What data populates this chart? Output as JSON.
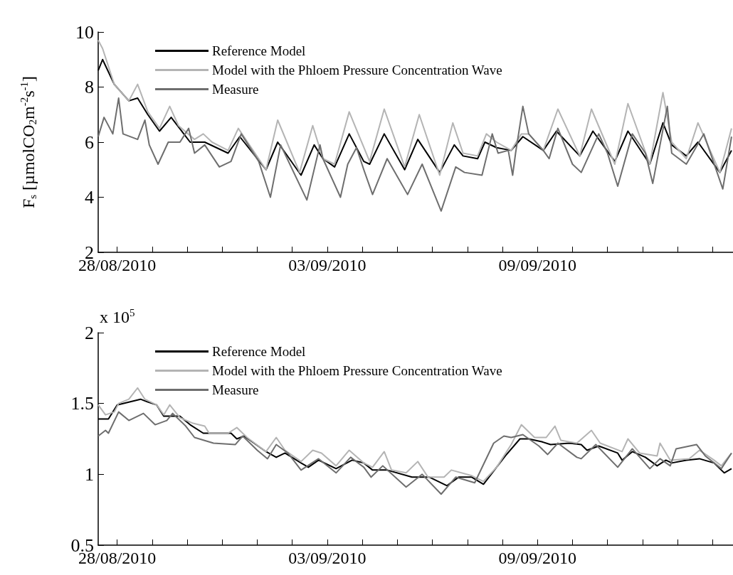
{
  "chart_data": [
    {
      "type": "line",
      "ylabel": "F$_{s}$ [µmolCO$_{2}$m$^{-2}$s$^{-1}$]",
      "legend": "top left",
      "grid": false,
      "marker": "none",
      "xlim": [
        "2010-08-27T11:00",
        "2010-09-14T14:00"
      ],
      "xticks": [
        {
          "value": "2010-08-28",
          "label": "28/08/2010"
        },
        {
          "value": "2010-08-29",
          "label": null
        },
        {
          "value": "2010-08-30",
          "label": null
        },
        {
          "value": "2010-08-31",
          "label": null
        },
        {
          "value": "2010-09-01",
          "label": null
        },
        {
          "value": "2010-09-02",
          "label": null
        },
        {
          "value": "2010-09-03",
          "label": "03/09/2010"
        },
        {
          "value": "2010-09-04",
          "label": null
        },
        {
          "value": "2010-09-05",
          "label": null
        },
        {
          "value": "2010-09-06",
          "label": null
        },
        {
          "value": "2010-09-07",
          "label": null
        },
        {
          "value": "2010-09-08",
          "label": null
        },
        {
          "value": "2010-09-09",
          "label": "09/09/2010"
        },
        {
          "value": "2010-09-10",
          "label": null
        },
        {
          "value": "2010-09-11",
          "label": null
        },
        {
          "value": "2010-09-12",
          "label": null
        },
        {
          "value": "2010-09-13",
          "label": null
        },
        {
          "value": "2010-09-14",
          "label": null
        }
      ],
      "ylim": [
        2,
        10
      ],
      "yticks": [
        2,
        4,
        6,
        8,
        10
      ],
      "series": [
        {
          "name": "Reference Model",
          "color": "#000000",
          "x": [
            "2010-08-27T11:00",
            "2010-08-27T14:00",
            "2010-08-27T22:00",
            "2010-08-28T08:00",
            "2010-08-28T14:00",
            "2010-08-28T21:00",
            "2010-08-29T05:00",
            "2010-08-29T13:00",
            "2010-08-30T02:00",
            "2010-08-30T12:00",
            "2010-08-31T04:00",
            "2010-08-31T12:00",
            "2010-09-01T06:00",
            "2010-09-01T14:00",
            "2010-09-02T06:00",
            "2010-09-02T15:00",
            "2010-09-02T21:00",
            "2010-09-03T05:00",
            "2010-09-03T15:00",
            "2010-09-04T01:00",
            "2010-09-04T05:00",
            "2010-09-04T15:00",
            "2010-09-05T05:00",
            "2010-09-05T14:00",
            "2010-09-06T05:00",
            "2010-09-06T15:00",
            "2010-09-06T21:00",
            "2010-09-07T07:00",
            "2010-09-07T12:00",
            "2010-09-07T20:00",
            "2010-09-08T06:00",
            "2010-09-08T14:00",
            "2010-09-09T04:00",
            "2010-09-09T13:00",
            "2010-09-10T05:00",
            "2010-09-10T14:00",
            "2010-09-11T05:00",
            "2010-09-11T14:00",
            "2010-09-12T05:00",
            "2010-09-12T14:00",
            "2010-09-12T20:00",
            "2010-09-13T06:00",
            "2010-09-13T14:00",
            "2010-09-14T05:00",
            "2010-09-14T13:00"
          ],
          "values": [
            8.6,
            9.0,
            8.1,
            7.5,
            7.6,
            7.0,
            6.4,
            6.9,
            6.0,
            6.0,
            5.6,
            6.2,
            5.0,
            6.0,
            4.8,
            5.9,
            5.4,
            5.1,
            6.3,
            5.3,
            5.2,
            6.3,
            5.0,
            6.1,
            4.9,
            5.9,
            5.5,
            5.4,
            6.0,
            5.8,
            5.7,
            6.2,
            5.7,
            6.4,
            5.5,
            6.4,
            5.3,
            6.4,
            5.2,
            6.7,
            5.9,
            5.5,
            6.0,
            4.9,
            5.7
          ]
        },
        {
          "name": "Model with the Phloem Pressure Concentration Wave",
          "color": "#b4b4b4",
          "x": [
            "2010-08-27T11:00",
            "2010-08-27T14:00",
            "2010-08-27T22:00",
            "2010-08-28T08:00",
            "2010-08-28T14:00",
            "2010-08-28T21:00",
            "2010-08-29T05:00",
            "2010-08-29T12:00",
            "2010-08-29T18:00",
            "2010-08-30T05:00",
            "2010-08-30T11:00",
            "2010-08-30T17:00",
            "2010-08-31T04:00",
            "2010-08-31T11:00",
            "2010-09-01T06:00",
            "2010-09-01T14:00",
            "2010-09-02T05:00",
            "2010-09-02T14:00",
            "2010-09-02T21:00",
            "2010-09-03T05:00",
            "2010-09-03T15:00",
            "2010-09-04T05:00",
            "2010-09-04T15:00",
            "2010-09-05T05:00",
            "2010-09-05T15:00",
            "2010-09-06T05:00",
            "2010-09-06T14:00",
            "2010-09-06T21:00",
            "2010-09-07T07:00",
            "2010-09-07T13:00",
            "2010-09-07T20:00",
            "2010-09-08T06:00",
            "2010-09-08T13:00",
            "2010-09-08T18:00",
            "2010-09-09T04:00",
            "2010-09-09T14:00",
            "2010-09-10T05:00",
            "2010-09-10T13:00",
            "2010-09-11T05:00",
            "2010-09-11T14:00",
            "2010-09-12T05:00",
            "2010-09-12T14:00",
            "2010-09-12T20:00",
            "2010-09-13T06:00",
            "2010-09-13T14:00",
            "2010-09-14T05:00",
            "2010-09-14T13:00"
          ],
          "values": [
            9.7,
            9.4,
            8.1,
            7.5,
            8.1,
            7.1,
            6.5,
            7.3,
            6.6,
            6.1,
            6.3,
            6.0,
            5.7,
            6.5,
            5.0,
            6.8,
            4.9,
            6.6,
            5.4,
            5.2,
            7.1,
            5.3,
            7.2,
            5.1,
            7.0,
            4.8,
            6.7,
            5.6,
            5.5,
            6.3,
            6.0,
            5.7,
            6.3,
            6.3,
            5.7,
            7.2,
            5.5,
            7.2,
            5.2,
            7.4,
            5.2,
            7.8,
            6.0,
            5.4,
            6.7,
            4.9,
            6.5
          ]
        },
        {
          "name": "Measure",
          "color": "#6e6e6e",
          "x": [
            "2010-08-27T11:00",
            "2010-08-27T15:00",
            "2010-08-27T21:00",
            "2010-08-28T01:00",
            "2010-08-28T04:00",
            "2010-08-28T14:00",
            "2010-08-28T19:00",
            "2010-08-28T22:00",
            "2010-08-29T04:00",
            "2010-08-29T11:00",
            "2010-08-29T19:00",
            "2010-08-30T01:00",
            "2010-08-30T05:00",
            "2010-08-30T12:00",
            "2010-08-30T22:00",
            "2010-08-31T06:00",
            "2010-08-31T13:00",
            "2010-09-01T01:00",
            "2010-09-01T09:00",
            "2010-09-01T16:00",
            "2010-09-02T10:00",
            "2010-09-02T19:00",
            "2010-09-02T21:00",
            "2010-09-03T09:00",
            "2010-09-03T14:00",
            "2010-09-03T20:00",
            "2010-09-04T01:00",
            "2010-09-04T07:00",
            "2010-09-04T17:00",
            "2010-09-05T07:00",
            "2010-09-05T17:00",
            "2010-09-06T06:00",
            "2010-09-06T16:00",
            "2010-09-06T22:00",
            "2010-09-07T10:00",
            "2010-09-07T17:00",
            "2010-09-07T21:00",
            "2010-09-08T04:00",
            "2010-09-08T07:00",
            "2010-09-08T09:00",
            "2010-09-08T14:00",
            "2010-09-08T18:00",
            "2010-09-09T04:00",
            "2010-09-09T08:00",
            "2010-09-09T14:00",
            "2010-09-10T00:00",
            "2010-09-10T06:00",
            "2010-09-10T18:00",
            "2010-09-11T00:00",
            "2010-09-11T07:00",
            "2010-09-11T17:00",
            "2010-09-12T02:00",
            "2010-09-12T07:00",
            "2010-09-12T17:00",
            "2010-09-12T20:00",
            "2010-09-13T06:00",
            "2010-09-13T18:00",
            "2010-09-14T07:00",
            "2010-09-14T13:00"
          ],
          "values": [
            6.2,
            6.9,
            6.3,
            7.6,
            6.3,
            6.1,
            6.8,
            5.9,
            5.2,
            6.0,
            6.0,
            6.5,
            5.6,
            5.9,
            5.1,
            5.3,
            6.3,
            5.3,
            4.0,
            5.9,
            3.9,
            5.9,
            5.4,
            4.0,
            5.2,
            5.8,
            5.0,
            4.1,
            5.4,
            4.1,
            5.2,
            3.5,
            5.1,
            4.9,
            4.8,
            6.3,
            5.6,
            5.7,
            4.8,
            5.6,
            7.3,
            6.3,
            5.7,
            5.4,
            6.5,
            5.2,
            4.9,
            6.3,
            5.6,
            4.4,
            6.3,
            5.6,
            4.5,
            7.3,
            5.6,
            5.2,
            6.3,
            4.3,
            6.2
          ]
        }
      ]
    },
    {
      "type": "line",
      "annotations": [
        "x 10$^{5}$"
      ],
      "legend": "top left",
      "grid": false,
      "marker": "none",
      "xlim": [
        "2010-08-27T11:00",
        "2010-09-14T14:00"
      ],
      "xticks": [
        {
          "value": "2010-08-28",
          "label": "28/08/2010"
        },
        {
          "value": "2010-08-29",
          "label": null
        },
        {
          "value": "2010-08-30",
          "label": null
        },
        {
          "value": "2010-08-31",
          "label": null
        },
        {
          "value": "2010-09-01",
          "label": null
        },
        {
          "value": "2010-09-02",
          "label": null
        },
        {
          "value": "2010-09-03",
          "label": "03/09/2010"
        },
        {
          "value": "2010-09-04",
          "label": null
        },
        {
          "value": "2010-09-05",
          "label": null
        },
        {
          "value": "2010-09-06",
          "label": null
        },
        {
          "value": "2010-09-07",
          "label": null
        },
        {
          "value": "2010-09-08",
          "label": null
        },
        {
          "value": "2010-09-09",
          "label": "09/09/2010"
        },
        {
          "value": "2010-09-10",
          "label": null
        },
        {
          "value": "2010-09-11",
          "label": null
        },
        {
          "value": "2010-09-12",
          "label": null
        },
        {
          "value": "2010-09-13",
          "label": null
        },
        {
          "value": "2010-09-14",
          "label": null
        }
      ],
      "ylim": [
        0.5,
        2
      ],
      "yticks": [
        0.5,
        1,
        1.5,
        2
      ],
      "series": [
        {
          "name": "Reference Model",
          "color": "#000000",
          "x": [
            "2010-08-27T11:00",
            "2010-08-27T16:00",
            "2010-08-27T18:00",
            "2010-08-28T00:00",
            "2010-08-28T08:00",
            "2010-08-28T16:00",
            "2010-08-28T21:00",
            "2010-08-29T03:00",
            "2010-08-29T08:00",
            "2010-08-29T19:00",
            "2010-08-30T02:00",
            "2010-08-30T11:00",
            "2010-08-31T06:00",
            "2010-08-31T10:00",
            "2010-08-31T15:00",
            "2010-09-01T06:00",
            "2010-09-01T13:00",
            "2010-09-01T19:00",
            "2010-09-02T06:00",
            "2010-09-02T11:00",
            "2010-09-02T18:00",
            "2010-09-03T06:00",
            "2010-09-03T17:00",
            "2010-09-04T01:00",
            "2010-09-04T07:00",
            "2010-09-04T17:00",
            "2010-09-05T10:00",
            "2010-09-05T22:00",
            "2010-09-06T10:00",
            "2010-09-06T18:00",
            "2010-09-07T03:00",
            "2010-09-07T11:00",
            "2010-09-07T17:00",
            "2010-09-08T02:00",
            "2010-09-08T12:00",
            "2010-09-08T18:00",
            "2010-09-09T03:00",
            "2010-09-09T09:00",
            "2010-09-09T22:00",
            "2010-09-10T06:00",
            "2010-09-10T10:00",
            "2010-09-10T18:00",
            "2010-09-11T07:00",
            "2010-09-11T10:00",
            "2010-09-11T17:00",
            "2010-09-12T02:00",
            "2010-09-12T10:00",
            "2010-09-12T16:00",
            "2010-09-12T20:00",
            "2010-09-13T06:00",
            "2010-09-13T15:00",
            "2010-09-14T01:00",
            "2010-09-14T08:00",
            "2010-09-14T13:00"
          ],
          "values": [
            1.39,
            1.39,
            1.39,
            1.49,
            1.51,
            1.53,
            1.51,
            1.49,
            1.41,
            1.41,
            1.35,
            1.29,
            1.29,
            1.25,
            1.27,
            1.16,
            1.12,
            1.15,
            1.08,
            1.05,
            1.1,
            1.04,
            1.1,
            1.08,
            1.03,
            1.03,
            0.98,
            0.98,
            0.92,
            0.98,
            0.98,
            0.93,
            1.01,
            1.13,
            1.25,
            1.25,
            1.23,
            1.21,
            1.22,
            1.21,
            1.17,
            1.2,
            1.15,
            1.1,
            1.16,
            1.12,
            1.06,
            1.1,
            1.08,
            1.1,
            1.11,
            1.08,
            1.01,
            1.04
          ]
        },
        {
          "name": "Model with the Phloem Pressure Concentration Wave",
          "color": "#b4b4b4",
          "x": [
            "2010-08-27T11:00",
            "2010-08-27T16:00",
            "2010-08-27T22:00",
            "2010-08-28T01:00",
            "2010-08-28T08:00",
            "2010-08-28T14:00",
            "2010-08-28T19:00",
            "2010-08-29T03:00",
            "2010-08-29T08:00",
            "2010-08-29T12:00",
            "2010-08-29T19:00",
            "2010-08-30T04:00",
            "2010-08-30T12:00",
            "2010-08-30T15:00",
            "2010-08-31T04:00",
            "2010-08-31T10:00",
            "2010-08-31T17:00",
            "2010-09-01T06:00",
            "2010-09-01T13:00",
            "2010-09-01T19:00",
            "2010-09-02T06:00",
            "2010-09-02T14:00",
            "2010-09-02T20:00",
            "2010-09-03T06:00",
            "2010-09-03T15:00",
            "2010-09-04T01:00",
            "2010-09-04T07:00",
            "2010-09-04T15:00",
            "2010-09-04T20:00",
            "2010-09-05T06:00",
            "2010-09-05T14:00",
            "2010-09-05T21:00",
            "2010-09-06T08:00",
            "2010-09-06T13:00",
            "2010-09-07T03:00",
            "2010-09-07T11:00",
            "2010-09-07T20:00",
            "2010-09-08T06:00",
            "2010-09-08T13:00",
            "2010-09-08T22:00",
            "2010-09-09T06:00",
            "2010-09-09T12:00",
            "2010-09-09T16:00",
            "2010-09-10T03:00",
            "2010-09-10T13:00",
            "2010-09-10T19:00",
            "2010-09-11T10:00",
            "2010-09-11T14:00",
            "2010-09-11T22:00",
            "2010-09-12T10:00",
            "2010-09-12T12:00",
            "2010-09-12T19:00",
            "2010-09-13T08:00",
            "2010-09-13T15:00",
            "2010-09-14T01:00",
            "2010-09-14T06:00",
            "2010-09-14T13:00"
          ],
          "values": [
            1.49,
            1.42,
            1.44,
            1.5,
            1.53,
            1.61,
            1.53,
            1.49,
            1.42,
            1.49,
            1.4,
            1.36,
            1.34,
            1.29,
            1.29,
            1.33,
            1.26,
            1.16,
            1.26,
            1.17,
            1.09,
            1.17,
            1.15,
            1.06,
            1.17,
            1.08,
            1.05,
            1.16,
            1.03,
            1.01,
            1.09,
            0.98,
            0.98,
            1.03,
            0.99,
            0.95,
            1.05,
            1.21,
            1.35,
            1.26,
            1.26,
            1.34,
            1.24,
            1.22,
            1.31,
            1.22,
            1.16,
            1.25,
            1.15,
            1.13,
            1.22,
            1.1,
            1.11,
            1.17,
            1.1,
            1.06,
            1.15
          ]
        },
        {
          "name": "Measure",
          "color": "#6e6e6e",
          "x": [
            "2010-08-27T11:00",
            "2010-08-27T16:00",
            "2010-08-27T18:00",
            "2010-08-28T01:00",
            "2010-08-28T08:00",
            "2010-08-28T18:00",
            "2010-08-29T02:00",
            "2010-08-29T10:00",
            "2010-08-29T14:00",
            "2010-08-29T23:00",
            "2010-08-30T05:00",
            "2010-08-30T18:00",
            "2010-08-31T09:00",
            "2010-08-31T14:00",
            "2010-09-01T00:00",
            "2010-09-01T07:00",
            "2010-09-01T13:00",
            "2010-09-01T21:00",
            "2010-09-02T06:00",
            "2010-09-02T18:00",
            "2010-09-03T06:00",
            "2010-09-03T16:00",
            "2010-09-04T01:00",
            "2010-09-04T06:00",
            "2010-09-04T14:00",
            "2010-09-05T06:00",
            "2010-09-05T17:00",
            "2010-09-06T06:00",
            "2010-09-06T16:00",
            "2010-09-07T05:00",
            "2010-09-07T18:00",
            "2010-09-08T01:00",
            "2010-09-08T06:00",
            "2010-09-08T14:00",
            "2010-09-09T01:00",
            "2010-09-09T07:00",
            "2010-09-09T14:00",
            "2010-09-10T03:00",
            "2010-09-10T06:00",
            "2010-09-10T16:00",
            "2010-09-11T07:00",
            "2010-09-11T17:00",
            "2010-09-12T05:00",
            "2010-09-12T12:00",
            "2010-09-12T19:00",
            "2010-09-12T23:00",
            "2010-09-13T13:00",
            "2010-09-13T19:00",
            "2010-09-14T06:00",
            "2010-09-14T13:00"
          ],
          "values": [
            1.27,
            1.31,
            1.29,
            1.44,
            1.38,
            1.43,
            1.35,
            1.38,
            1.43,
            1.34,
            1.26,
            1.22,
            1.21,
            1.27,
            1.17,
            1.11,
            1.21,
            1.15,
            1.03,
            1.11,
            1.01,
            1.12,
            1.05,
            0.98,
            1.06,
            0.91,
            1.0,
            0.86,
            0.98,
            0.94,
            1.22,
            1.27,
            1.26,
            1.28,
            1.2,
            1.14,
            1.22,
            1.12,
            1.11,
            1.21,
            1.05,
            1.18,
            1.04,
            1.11,
            1.06,
            1.18,
            1.21,
            1.13,
            1.04,
            1.15
          ]
        }
      ]
    }
  ]
}
